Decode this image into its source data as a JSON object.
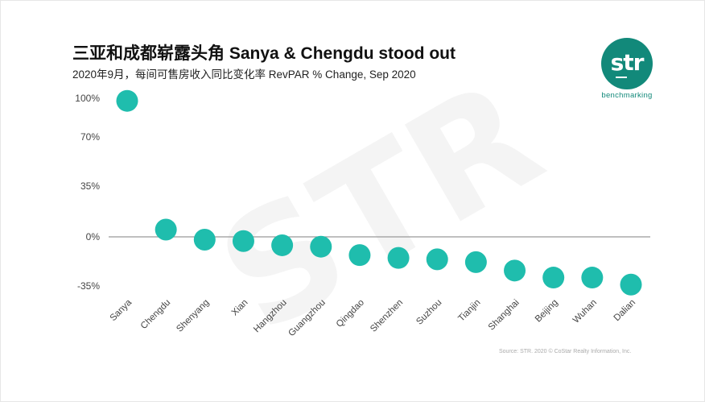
{
  "title": "三亚和成都崭露头角  Sanya & Chengdu stood out",
  "subtitle": "2020年9月，每间可售房收入同比变化率  RevPAR % Change, Sep 2020",
  "logo": {
    "mark": "str",
    "tagline": "benchmarking"
  },
  "watermark": "STR",
  "source": "Source: STR. 2020 © CoStar Realty Information, Inc.",
  "colors": {
    "marker": "#1fbdad",
    "brand": "#12897a",
    "axis": "#999999"
  },
  "chart_data": {
    "type": "scatter",
    "categories": [
      "Sanya",
      "Chengdu",
      "Shenyang",
      "Xian",
      "Hangzhou",
      "Guangzhou",
      "Qingdao",
      "Shenzhen",
      "Suzhou",
      "Tianjin",
      "Shanghai",
      "Beijing",
      "Wuhan",
      "Dalian"
    ],
    "values": [
      98,
      5,
      -2,
      -3,
      -6,
      -7,
      -13,
      -15,
      -16,
      -18,
      -24,
      -29,
      -29,
      -34
    ],
    "y_ticks": [
      100,
      70,
      35,
      0,
      -35
    ],
    "y_tick_labels": [
      "100%",
      "70%",
      "35%",
      "0%",
      "-35%"
    ],
    "ylim": [
      -35,
      100
    ],
    "grid": false,
    "legend": "none"
  }
}
